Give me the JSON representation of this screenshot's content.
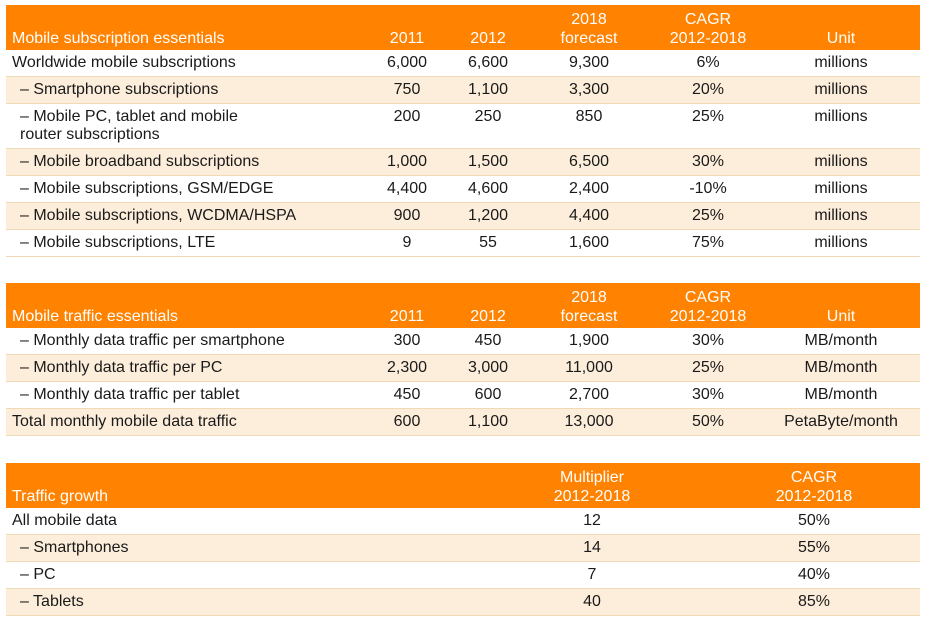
{
  "subscriptions": {
    "header": {
      "label": "Mobile subscription essentials",
      "col2011": "2011",
      "col2012": "2012",
      "colForecast": "2018\nforecast",
      "colCagr": "CAGR\n2012-2018",
      "colUnit": "Unit"
    },
    "rows": [
      {
        "label": "Worldwide mobile subscriptions",
        "level": 0,
        "v2011": "6,000",
        "v2012": "6,600",
        "v2018": "9,300",
        "cagr": "6%",
        "unit": "millions"
      },
      {
        "label": "– Smartphone subscriptions",
        "level": 1,
        "v2011": "750",
        "v2012": "1,100",
        "v2018": "3,300",
        "cagr": "20%",
        "unit": "millions"
      },
      {
        "label": "– Mobile PC, tablet and mobile router subscriptions",
        "level": 1,
        "v2011": "200",
        "v2012": "250",
        "v2018": "850",
        "cagr": "25%",
        "unit": "millions"
      },
      {
        "label": "– Mobile broadband subscriptions",
        "level": 1,
        "v2011": "1,000",
        "v2012": "1,500",
        "v2018": "6,500",
        "cagr": "30%",
        "unit": "millions"
      },
      {
        "label": "– Mobile subscriptions, GSM/EDGE",
        "level": 1,
        "v2011": "4,400",
        "v2012": "4,600",
        "v2018": "2,400",
        "cagr": "-10%",
        "unit": "millions"
      },
      {
        "label": "– Mobile subscriptions, WCDMA/HSPA",
        "level": 1,
        "v2011": "900",
        "v2012": "1,200",
        "v2018": "4,400",
        "cagr": "25%",
        "unit": "millions"
      },
      {
        "label": "– Mobile subscriptions, LTE",
        "level": 1,
        "v2011": "9",
        "v2012": "55",
        "v2018": "1,600",
        "cagr": "75%",
        "unit": "millions"
      }
    ]
  },
  "traffic": {
    "header": {
      "label": "Mobile traffic essentials",
      "col2011": "2011",
      "col2012": "2012",
      "colForecast": "2018\nforecast",
      "colCagr": "CAGR\n2012-2018",
      "colUnit": "Unit"
    },
    "rows": [
      {
        "label": "– Monthly data traffic per smartphone",
        "level": 1,
        "v2011": "300",
        "v2012": "450",
        "v2018": "1,900",
        "cagr": "30%",
        "unit": "MB/month"
      },
      {
        "label": "– Monthly data traffic per PC",
        "level": 1,
        "v2011": "2,300",
        "v2012": "3,000",
        "v2018": "11,000",
        "cagr": "25%",
        "unit": "MB/month"
      },
      {
        "label": "– Monthly data traffic per tablet",
        "level": 1,
        "v2011": "450",
        "v2012": "600",
        "v2018": "2,700",
        "cagr": "30%",
        "unit": "MB/month"
      },
      {
        "label": "Total monthly mobile data traffic",
        "level": 0,
        "v2011": "600",
        "v2012": "1,100",
        "v2018": "13,000",
        "cagr": "50%",
        "unit": "PetaByte/month"
      }
    ]
  },
  "growth": {
    "header": {
      "label": "Traffic growth",
      "colMultiplier": "Multiplier\n2012-2018",
      "colCagr": "CAGR\n2012-2018"
    },
    "rows": [
      {
        "label": "All mobile data",
        "level": 0,
        "multiplier": "12",
        "cagr": "50%"
      },
      {
        "label": "– Smartphones",
        "level": 1,
        "multiplier": "14",
        "cagr": "55%"
      },
      {
        "label": "– PC",
        "level": 1,
        "multiplier": "7",
        "cagr": "40%"
      },
      {
        "label": "– Tablets",
        "level": 1,
        "multiplier": "40",
        "cagr": "85%"
      }
    ]
  },
  "colors": {
    "header_bg": "#ff8200",
    "alt_row_bg": "#fdeedb"
  }
}
